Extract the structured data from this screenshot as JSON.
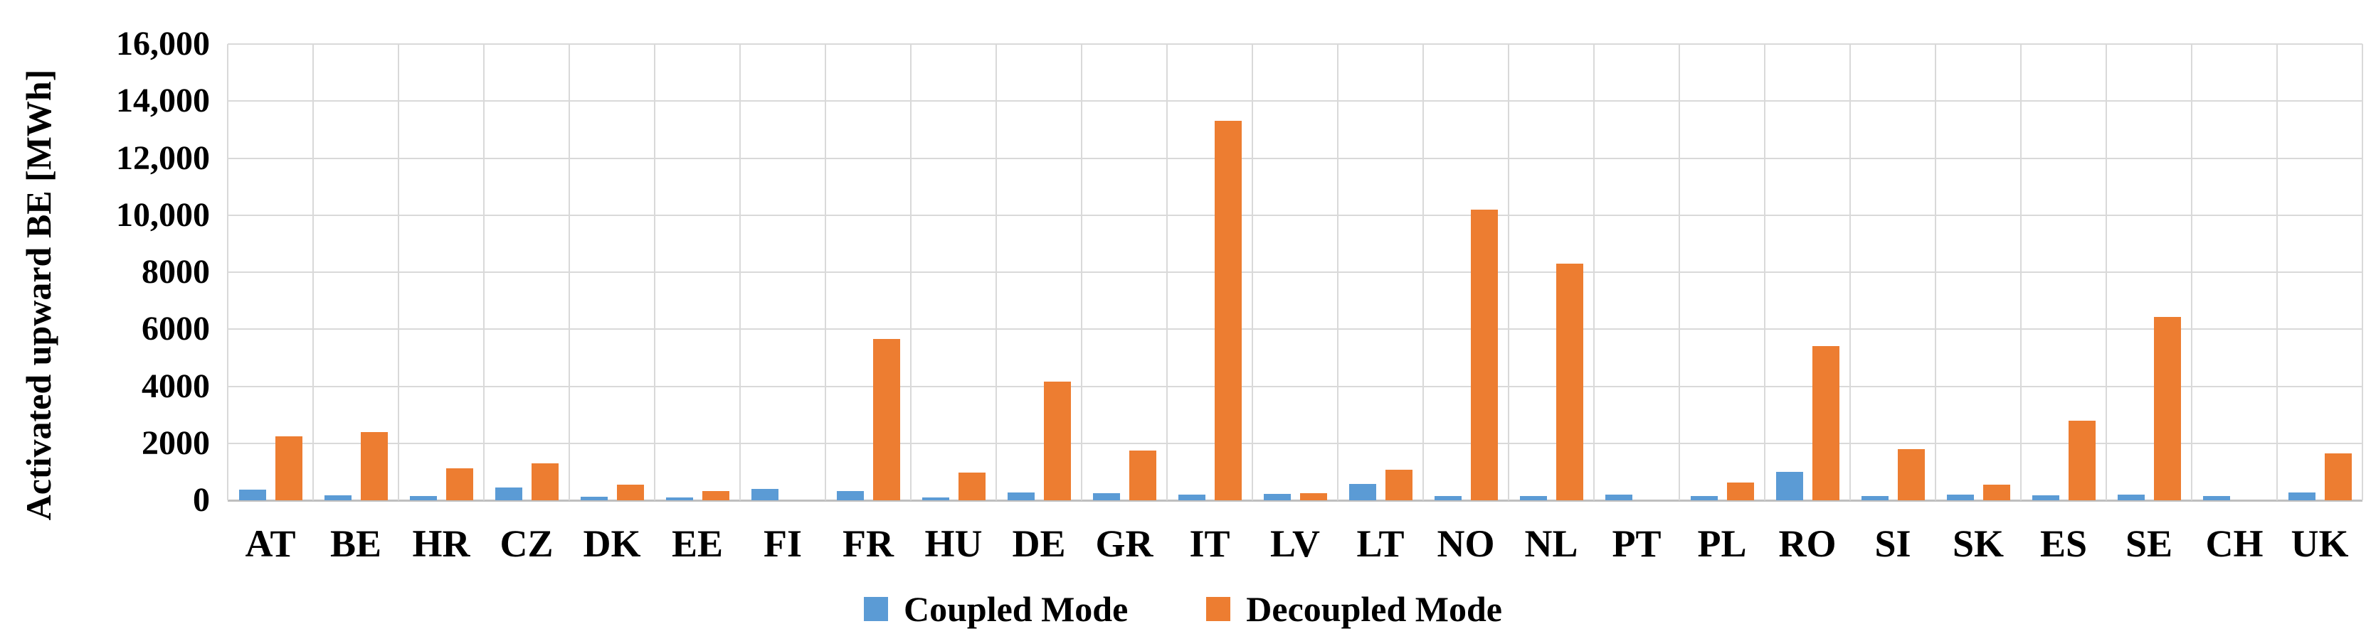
{
  "figure": {
    "background": "#ffffff"
  },
  "colors": {
    "gridline": "#D9D9D9",
    "axis_line": "#BFBFBF",
    "text": "#000000",
    "coupled": "#5B9BD5",
    "decoupled": "#ED7D31"
  },
  "chart_data": {
    "type": "bar",
    "title": "",
    "xlabel": "",
    "ylabel": "Activated upward BE [MWh]",
    "ylim": [
      0,
      16000
    ],
    "ytick_step": 2000,
    "ytick_labels": [
      "0",
      "2000",
      "4000",
      "6000",
      "8000",
      "10,000",
      "12,000",
      "14,000",
      "16,000"
    ],
    "grid": "both",
    "legend_position": "bottom-center",
    "categories": [
      "AT",
      "BE",
      "HR",
      "CZ",
      "DK",
      "EE",
      "FI",
      "FR",
      "HU",
      "DE",
      "GR",
      "IT",
      "LV",
      "LT",
      "NO",
      "NL",
      "PT",
      "PL",
      "RO",
      "SI",
      "SK",
      "ES",
      "SE",
      "CH",
      "UK"
    ],
    "series": [
      {
        "name": "Coupled Mode",
        "color": "#5B9BD5",
        "values": [
          380,
          170,
          160,
          440,
          130,
          100,
          390,
          330,
          100,
          280,
          250,
          200,
          230,
          580,
          150,
          150,
          190,
          150,
          1000,
          150,
          200,
          170,
          200,
          150,
          280
        ]
      },
      {
        "name": "Decoupled Mode",
        "color": "#ED7D31",
        "values": [
          2250,
          2400,
          1120,
          1300,
          560,
          330,
          0,
          5650,
          960,
          4150,
          1750,
          13300,
          250,
          1080,
          10200,
          8300,
          0,
          620,
          5400,
          1800,
          560,
          2800,
          6430,
          0,
          1650
        ]
      }
    ]
  }
}
